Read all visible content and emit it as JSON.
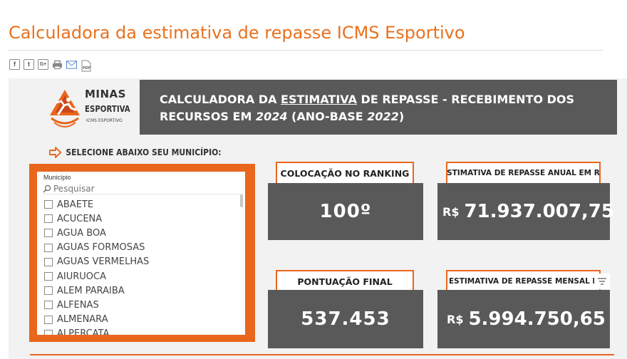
{
  "page": {
    "title": "Calculadora da estimativa de repasse ICMS Esportivo"
  },
  "share": {
    "icons": [
      "facebook-icon",
      "twitter-icon",
      "google-plus-icon",
      "print-icon",
      "email-icon",
      "pdf-icon"
    ],
    "facebook_glyph": "f",
    "twitter_glyph": "t",
    "google_glyph": "G+",
    "pdf_glyph": "PDF"
  },
  "logo": {
    "line1": "MINAS",
    "line2": "ESPORTIVA",
    "line3": "ICMS ESPORTIVO"
  },
  "header": {
    "part1": "CALCULADORA DA ",
    "underlined": "ESTIMATIVA",
    "part2": " DE REPASSE - RECEBIMENTO DOS",
    "part3": "RECURSOS EM ",
    "year": "2024",
    "part4": " (ANO-BASE ",
    "base_year": "2022",
    "part5": ")"
  },
  "prompt": {
    "text": "SELECIONE ABAIXO SEU MUNICÍPIO:"
  },
  "slicer": {
    "label": "Município",
    "search_placeholder": "Pesquisar",
    "items": [
      "ABAETE",
      "ACUCENA",
      "AGUA BOA",
      "AGUAS FORMOSAS",
      "AGUAS VERMELHAS",
      "AIURUOCA",
      "ALEM PARAIBA",
      "ALFENAS",
      "ALMENARA",
      "ALPERCATA"
    ]
  },
  "cards": {
    "ranking_label": "COLOCAÇÃO NO RANKING",
    "ranking_value": "100º",
    "annual_label": "ESTIMATIVA DE REPASSE ANUAL EM R$",
    "annual_currency": "R$",
    "annual_value": "71.937.007,75",
    "score_label": "PONTUAÇÃO FINAL",
    "score_value": "537.453",
    "monthly_label": "ESTIMATIVA DE REPASSE MENSAL EM R$",
    "monthly_currency": "R$",
    "monthly_value": "5.994.750,65"
  },
  "colors": {
    "accent_orange": "#e8711f",
    "dark_gray": "#595959",
    "canvas_bg": "#f2f2f2"
  }
}
